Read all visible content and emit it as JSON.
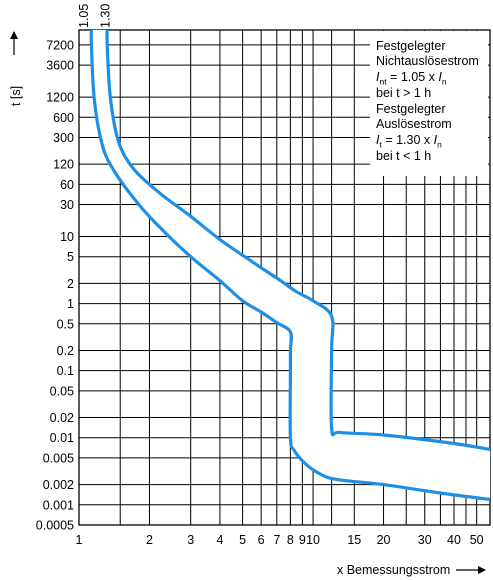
{
  "chart_data": {
    "type": "line",
    "xlabel": "x Bemessungsstrom",
    "ylabel": "t [s]",
    "x_scale": "log",
    "y_scale": "log",
    "xlim": [
      1,
      57
    ],
    "ylim": [
      0.0005,
      12000
    ],
    "x_ticks": [
      1,
      2,
      3,
      4,
      5,
      6,
      7,
      8,
      9,
      10,
      15,
      20,
      30,
      40,
      50
    ],
    "x_tick_labels": [
      "1",
      "2",
      "3",
      "4",
      "5",
      "6",
      "7",
      "8",
      "9",
      "10",
      "15",
      "20",
      "30",
      "40",
      "50"
    ],
    "x_minor_gridlines": [
      1.5,
      12,
      25,
      35,
      45
    ],
    "y_ticks": [
      7200,
      3600,
      1200,
      600,
      300,
      120,
      60,
      30,
      10,
      5,
      2,
      1,
      0.5,
      0.2,
      0.1,
      0.05,
      0.02,
      0.01,
      0.005,
      0.002,
      0.001,
      0.0005
    ],
    "y_tick_labels": [
      "7200",
      "3600",
      "1200",
      "600",
      "300",
      "120",
      "60",
      "30",
      "10",
      "5",
      "2",
      "1",
      "0.5",
      "0.2",
      "0.1",
      "0.05",
      "0.02",
      "0.01",
      "0.005",
      "0.002",
      "0.001",
      "0.0005"
    ],
    "top_labels": [
      "1.05",
      "1.30"
    ],
    "top_label_x": [
      1.05,
      1.3
    ],
    "grid": true,
    "legend_position": "top-right",
    "colors": {
      "curve": "#1e8fe6",
      "grid": "#000000"
    },
    "series": [
      {
        "values": [
          [
            1.13,
            12000
          ],
          [
            1.13,
            7200
          ],
          [
            1.16,
            1200
          ],
          [
            1.25,
            250
          ],
          [
            1.4,
            100
          ],
          [
            1.8,
            30
          ],
          [
            2.3,
            12
          ],
          [
            3,
            5
          ],
          [
            4,
            2.2
          ],
          [
            5,
            1.1
          ],
          [
            6,
            0.75
          ],
          [
            7,
            0.52
          ],
          [
            8,
            0.38
          ],
          [
            8,
            0.2
          ],
          [
            8,
            0.1
          ],
          [
            8,
            0.01
          ],
          [
            8.3,
            0.0065
          ],
          [
            9.2,
            0.0042
          ],
          [
            10.5,
            0.003
          ],
          [
            12.5,
            0.0024
          ],
          [
            20,
            0.002
          ],
          [
            35,
            0.0015
          ],
          [
            57,
            0.0012
          ]
        ]
      },
      {
        "values": [
          [
            1.32,
            12000
          ],
          [
            1.32,
            7200
          ],
          [
            1.36,
            1200
          ],
          [
            1.48,
            250
          ],
          [
            1.72,
            100
          ],
          [
            2.2,
            45
          ],
          [
            3,
            20
          ],
          [
            4,
            9
          ],
          [
            5.5,
            4.2
          ],
          [
            7,
            2.4
          ],
          [
            8.5,
            1.5
          ],
          [
            10,
            1.1
          ],
          [
            12,
            0.65
          ],
          [
            12,
            0.2
          ],
          [
            12,
            0.014
          ],
          [
            13,
            0.012
          ],
          [
            20,
            0.011
          ],
          [
            40,
            0.0082
          ],
          [
            57,
            0.0067
          ]
        ]
      }
    ]
  },
  "legend": {
    "l1": "Festgelegter",
    "l2": "Nichtauslösestrom",
    "l3_sym": "I",
    "l3_sub": "nt",
    "l3_mid": " = 1.05 x ",
    "l3_sym2": "I",
    "l3_sub2": "n",
    "l4": "bei t > 1 h",
    "l5": "Festgelegter",
    "l6": "Auslösestrom",
    "l7_sym": "I",
    "l7_sub": "t",
    "l7_mid": " = 1.30 x ",
    "l7_sym2": "I",
    "l7_sub2": "n",
    "l8": "bei t < 1 h"
  }
}
